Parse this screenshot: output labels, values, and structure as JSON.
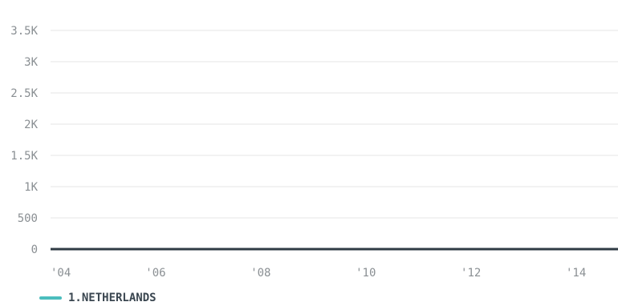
{
  "chart_data": {
    "type": "line",
    "title": "",
    "xlabel": "",
    "ylabel": "",
    "x_ticks": [
      "'04",
      "'06",
      "'08",
      "'10",
      "'12",
      "'14"
    ],
    "y_ticks": [
      "0",
      "500",
      "1K",
      "1.5K",
      "2K",
      "2.5K",
      "3K",
      "3.5K"
    ],
    "ylim": [
      0,
      3500
    ],
    "xlim": [
      2004,
      2014.8
    ],
    "grid": true,
    "legend_position": "bottom-left",
    "series": [
      {
        "name": "1.NETHERLANDS",
        "color": "#4bbdbd",
        "x": [
          2004,
          2005,
          2006,
          2007,
          2008,
          2009,
          2010,
          2011,
          2012,
          2013,
          2014
        ],
        "values": [
          0,
          0,
          0,
          0,
          0,
          0,
          0,
          0,
          0,
          0,
          0
        ]
      }
    ]
  },
  "colors": {
    "grid": "#e6e6e6",
    "baseline": "#2f3b44",
    "tick_text": "#8a8f93"
  }
}
